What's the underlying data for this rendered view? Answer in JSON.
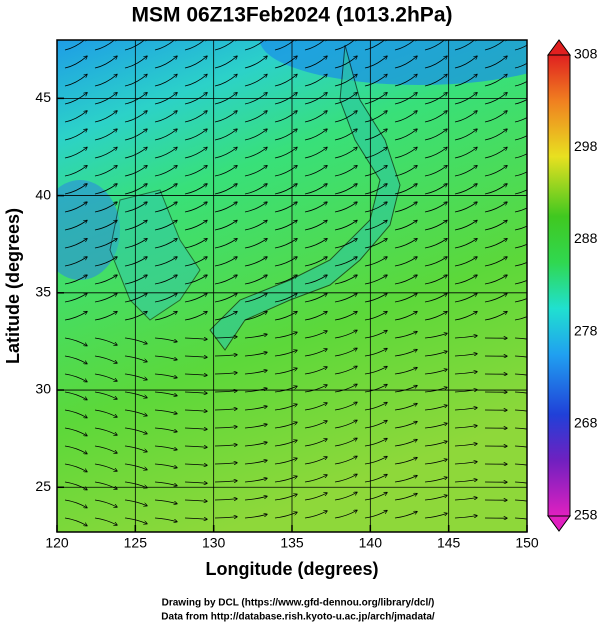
{
  "chart_data": {
    "type": "map",
    "title": "MSM 06Z13Feb2024 (1013.2hPa)",
    "xlabel": "Longitude (degrees)",
    "ylabel": "Latitude  (degrees)",
    "xlim": [
      120,
      150
    ],
    "xticks": [
      120,
      125,
      130,
      135,
      140,
      145,
      150
    ],
    "ylim": [
      22.7,
      48.0
    ],
    "yticks": [
      25,
      30,
      35,
      40,
      45
    ],
    "grid": true,
    "colorbar": {
      "lim": [
        258,
        308
      ],
      "ticks": [
        258,
        268,
        278,
        288,
        298,
        308
      ]
    }
  },
  "footer": [
    "Drawing by DCL (https://www.gfd-dennou.org/library/dcl/)",
    "Data from http://database.rish.kyoto-u.ac.jp/arch/jmadata/"
  ]
}
